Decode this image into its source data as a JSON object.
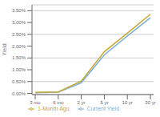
{
  "chart_data": {
    "type": "line",
    "ylabel": "Yield",
    "categories": [
      "3 mo",
      "6 mo",
      "2 yr",
      "5 yr",
      "10 yr",
      "30 yr"
    ],
    "series": [
      {
        "name": "Current Yield",
        "color": "#7ab0d8",
        "values": [
          0.03,
          0.05,
          0.45,
          1.63,
          2.43,
          3.2
        ]
      },
      {
        "name": "1-Month Ago",
        "color": "#c9a832",
        "values": [
          0.04,
          0.06,
          0.52,
          1.76,
          2.55,
          3.35
        ]
      }
    ],
    "ylim": [
      -0.05,
      3.75
    ],
    "yticks": [
      {
        "value": 0.0,
        "label": "0.00%"
      },
      {
        "value": 0.5,
        "label": "0.50%"
      },
      {
        "value": 1.0,
        "label": "1.00%"
      },
      {
        "value": 1.5,
        "label": "1.50%"
      },
      {
        "value": 2.0,
        "label": "2.00%"
      },
      {
        "value": 2.5,
        "label": "2.50%"
      },
      {
        "value": 3.0,
        "label": "3.00%"
      },
      {
        "value": 3.5,
        "label": "3.50%"
      }
    ],
    "grid": true,
    "legend": "bottom"
  }
}
